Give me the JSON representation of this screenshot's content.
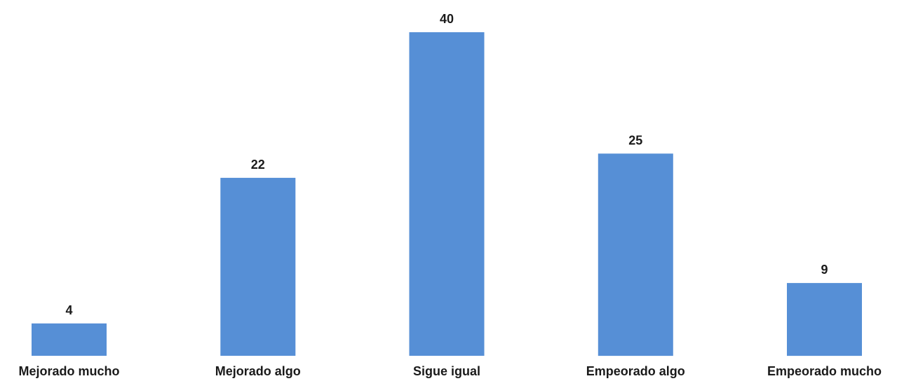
{
  "chart_data": {
    "type": "bar",
    "categories": [
      "Mejorado mucho",
      "Mejorado algo",
      "Sigue igual",
      "Empeorado algo",
      "Empeorado mucho"
    ],
    "values": [
      4,
      22,
      40,
      25,
      9
    ],
    "title": "",
    "xlabel": "",
    "ylabel": "",
    "ylim": [
      0,
      40
    ],
    "grid": false,
    "legend": "none",
    "bar_color": "#568fd6",
    "data_labels": true
  }
}
